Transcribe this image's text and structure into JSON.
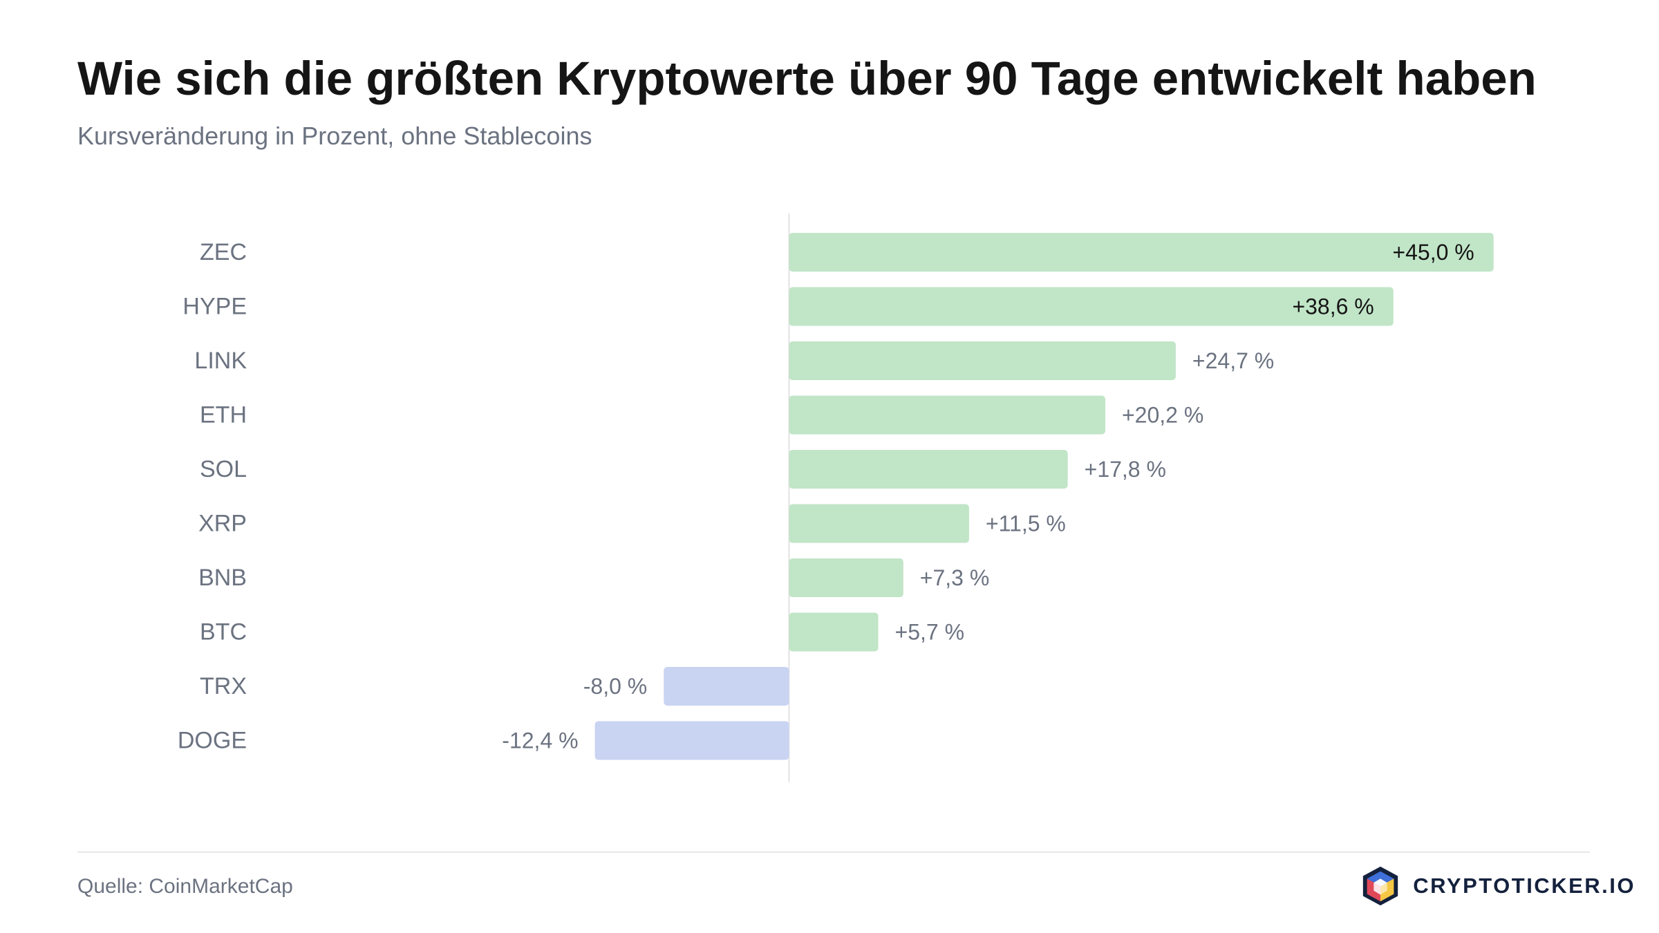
{
  "title": "Wie sich die größten Kryptowerte über 90 Tage entwickelt haben",
  "subtitle": "Kursveränderung in Prozent, ohne Stablecoins",
  "source": "Quelle: CoinMarketCap",
  "brand": {
    "name": "CRYPTOTICKER.IO",
    "logo_icon": "cube-logo-icon"
  },
  "colors": {
    "positive": "#c1e5c7",
    "negative": "#c9d4f3",
    "label_text": "#6b7280",
    "inside_label_text": "#151515",
    "zero_line": "#e2e2e2"
  },
  "chart_data": {
    "type": "bar",
    "orientation": "horizontal",
    "categories": [
      "ZEC",
      "HYPE",
      "LINK",
      "ETH",
      "SOL",
      "XRP",
      "BNB",
      "BTC",
      "TRX",
      "DOGE"
    ],
    "values": [
      45.0,
      38.6,
      24.7,
      20.2,
      17.8,
      11.5,
      7.3,
      5.7,
      -8.0,
      -12.4
    ],
    "data_labels": [
      "+45,0 %",
      "+38,6 %",
      "+24,7 %",
      "+20,2 %",
      "+17,8 %",
      "+11,5 %",
      "+7,3 %",
      "+5,7 %",
      "-8,0 %",
      "-12,4 %"
    ],
    "xlim": [
      -34.5,
      48.5
    ],
    "grid": false,
    "legend": false
  }
}
